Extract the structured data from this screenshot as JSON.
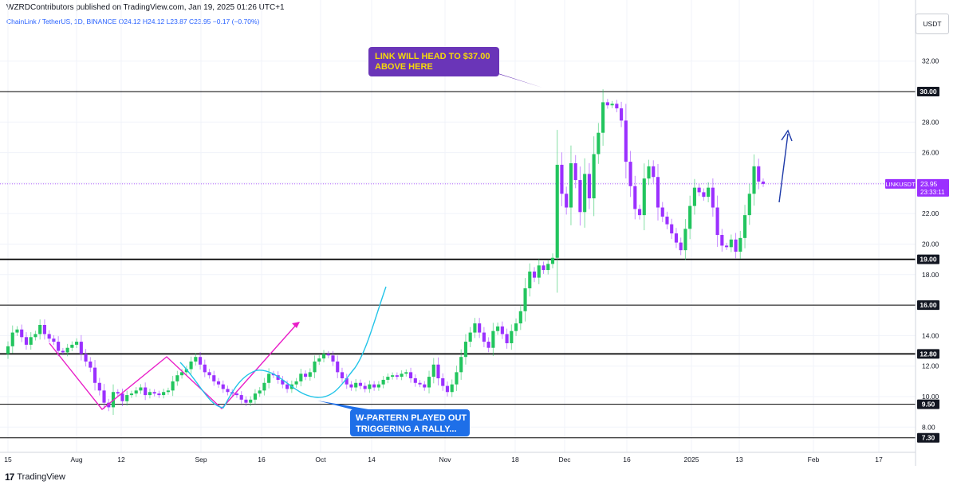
{
  "header": {
    "published": "WZRDContributors published on TradingView.com, Jan 19, 2025 01:26 UTC+1",
    "symbol_line": "ChainLink / TetherUS, 1D, BINANCE  O24.12  H24.12  L23.87  C23.95  −0.17 (−0.70%)"
  },
  "price_scale": {
    "currency": "USDT"
  },
  "footer": {
    "logo": "17",
    "brand": "TradingView"
  },
  "colors": {
    "up": "#22c55e",
    "down": "#9b30ff",
    "pink": "#e91ec8",
    "cyan": "#22c4e8",
    "blue_arrow": "#1e3aa8"
  },
  "chart_data": {
    "type": "candlestick",
    "title": "ChainLink / TetherUS, 1D, BINANCE",
    "ylabel": "USDT",
    "ylim": [
      7,
      33
    ],
    "y_ticks": [
      "8.00",
      "10.00",
      "12.00",
      "14.00",
      "16.00",
      "18.00",
      "20.00",
      "22.00",
      "24.00",
      "26.00",
      "28.00",
      "30.00",
      "32.00"
    ],
    "x_ticks": [
      "15",
      "Aug",
      "12",
      "Sep",
      "16",
      "Oct",
      "14",
      "Nov",
      "18",
      "Dec",
      "16",
      "2025",
      "13",
      "Feb",
      "17"
    ],
    "horizontal_levels": [
      {
        "label": "30.00",
        "value": 30.0
      },
      {
        "label": "19.00",
        "value": 19.0
      },
      {
        "label": "16.00",
        "value": 16.0
      },
      {
        "label": "12.80",
        "value": 12.8
      },
      {
        "label": "9.50",
        "value": 9.5
      },
      {
        "label": "7.30",
        "value": 7.3
      }
    ],
    "last_price": {
      "symbol": "LINKUSDT",
      "price": "23.95",
      "countdown": "23:33:11"
    },
    "annotations": [
      {
        "text_lines": [
          "LINK WILL HEAD TO $37.00",
          "ABOVE HERE"
        ],
        "color": "#6a35b8",
        "text_color": "#f5d90a"
      },
      {
        "text_lines": [
          "W-PARTERN PLAYED OUT",
          "TRIGGERING A RALLY..."
        ],
        "color": "#1e6fe8",
        "text_color": "#ffffff"
      }
    ],
    "closes": [
      13.3,
      14.2,
      14.4,
      13.9,
      13.4,
      13.9,
      14.1,
      14.7,
      14.1,
      13.8,
      13.6,
      13.0,
      12.9,
      13.2,
      13.4,
      13.6,
      12.8,
      12.3,
      11.9,
      10.9,
      10.4,
      9.6,
      9.3,
      10.3,
      10.2,
      9.7,
      10.1,
      10.2,
      10.4,
      10.6,
      10.1,
      10.3,
      10.2,
      10.1,
      10.3,
      10.4,
      11.0,
      11.4,
      11.6,
      11.8,
      12.3,
      12.6,
      12.1,
      11.6,
      11.4,
      11.0,
      10.8,
      10.5,
      10.3,
      10.2,
      10.1,
      9.8,
      9.6,
      9.8,
      10.2,
      10.4,
      10.9,
      11.5,
      11.4,
      11.1,
      10.8,
      10.5,
      10.8,
      11.0,
      11.5,
      11.3,
      11.6,
      12.3,
      12.5,
      12.8,
      12.7,
      12.3,
      11.6,
      11.2,
      10.8,
      10.6,
      10.9,
      10.7,
      10.5,
      10.8,
      10.6,
      10.8,
      11.1,
      11.3,
      11.4,
      11.3,
      11.5,
      11.6,
      11.2,
      10.9,
      10.8,
      10.6,
      11.3,
      12.1,
      11.2,
      10.7,
      10.3,
      10.8,
      11.6,
      12.6,
      13.6,
      14.2,
      14.8,
      14.2,
      13.6,
      13.2,
      14.3,
      14.6,
      14.1,
      13.5,
      14.3,
      14.8,
      15.6,
      17.1,
      18.2,
      17.8,
      18.6,
      18.3,
      18.7,
      19.1,
      25.2,
      23.3,
      22.4,
      25.3,
      24.2,
      22.1,
      24.6,
      23.0,
      25.9,
      27.3,
      29.3,
      29.1,
      29.2,
      28.9,
      28.1,
      25.4,
      23.8,
      22.3,
      21.9,
      24.3,
      25.1,
      24.4,
      22.4,
      21.8,
      21.3,
      20.7,
      20.1,
      19.6,
      21.0,
      22.5,
      23.7,
      23.4,
      23.1,
      23.7,
      22.4,
      20.6,
      19.9,
      19.8,
      20.3,
      19.5,
      20.4,
      21.9,
      23.3,
      25.1,
      24.1,
      23.95
    ]
  }
}
